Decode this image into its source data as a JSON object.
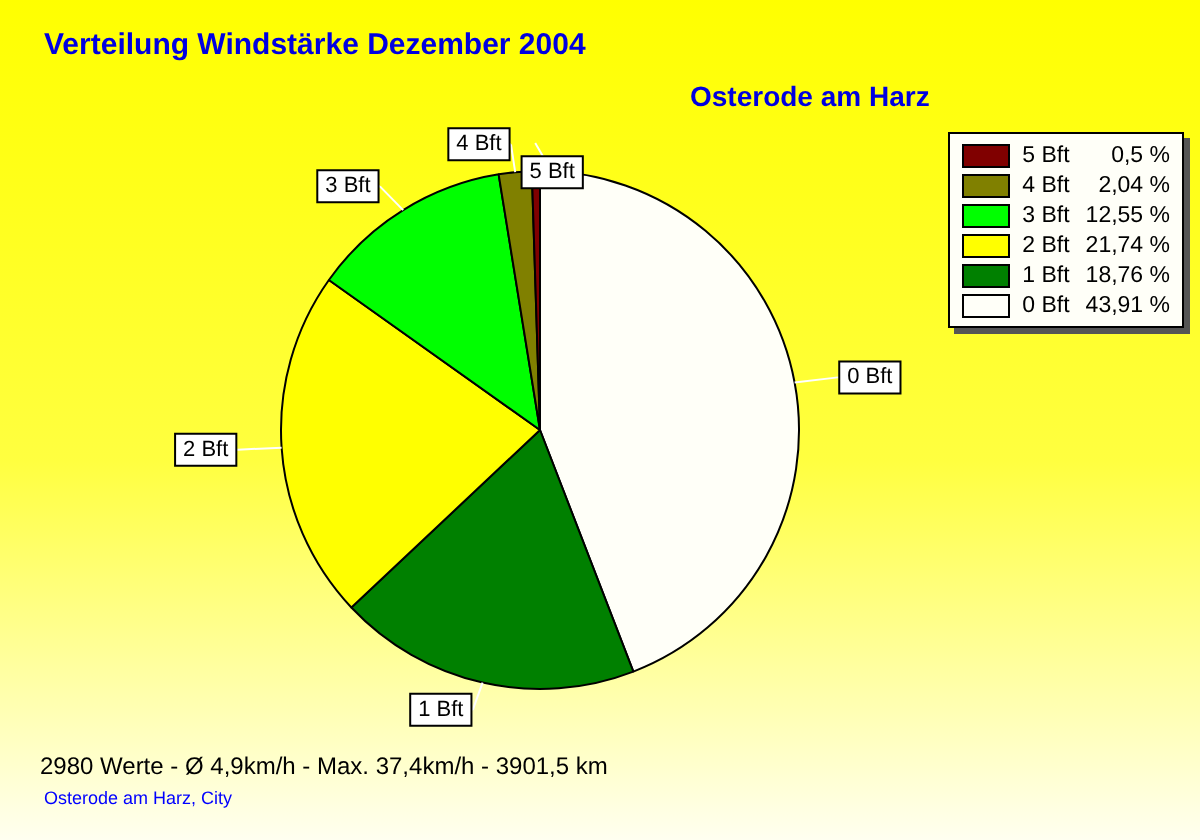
{
  "chart_data": {
    "type": "pie",
    "title": "Verteilung Windstärke  Dezember 2004",
    "subtitle": "Osterode am Harz",
    "categories": [
      "5 Bft",
      "4 Bft",
      "3 Bft",
      "2 Bft",
      "1 Bft",
      "0 Bft"
    ],
    "values": [
      0.5,
      2.04,
      12.55,
      21.74,
      18.76,
      43.91
    ],
    "value_labels": [
      "0,5 %",
      "2,04 %",
      "12,55 %",
      "21,74 %",
      "18,76 %",
      "43,91 %"
    ],
    "colors": [
      "#800000",
      "#808000",
      "#00ff00",
      "#ffff00",
      "#008000",
      "#fffff8"
    ],
    "legend": "top right",
    "annotations": [
      "2980 Werte   -   Ø 4,9km/h  -  Max. 37,4km/h   -   3901,5 km",
      "Osterode am Harz, City"
    ]
  }
}
